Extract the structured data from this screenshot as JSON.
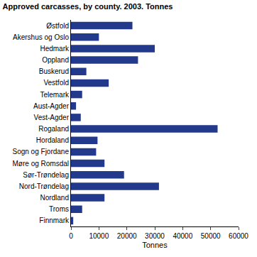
{
  "chart_data": {
    "type": "bar",
    "orientation": "horizontal",
    "title": "Approved carcasses, by county. 2003. Tonnes",
    "x_label": "Tonnes",
    "categories": [
      "Østfold",
      "Akershus og Oslo",
      "Hedmark",
      "Oppland",
      "Buskerud",
      "Vestfold",
      "Telemark",
      "Aust-Agder",
      "Vest-Agder",
      "Rogaland",
      "Hordaland",
      "Sogn og Fjordane",
      "Møre og Romsdal",
      "Sør-Trøndelag",
      "Nord-Trøndelag",
      "Nordland",
      "Troms",
      "Finnmark"
    ],
    "values": [
      22000,
      10000,
      30000,
      24000,
      5500,
      13500,
      4000,
      1800,
      3500,
      52500,
      9500,
      9000,
      12000,
      19000,
      31500,
      12000,
      4000,
      800
    ],
    "color": "#233a8c",
    "xlim": [
      0,
      60000
    ],
    "xticks": [
      0,
      10000,
      20000,
      30000,
      40000,
      50000,
      60000
    ],
    "grid": false
  }
}
